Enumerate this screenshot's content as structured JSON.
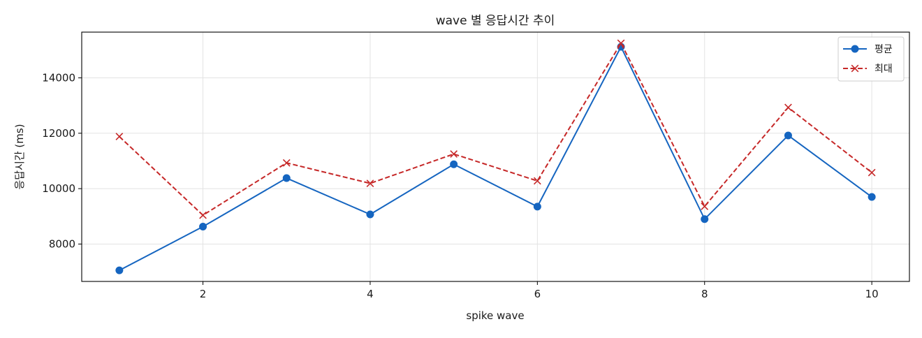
{
  "chart_data": {
    "type": "line",
    "title": "wave 별 응답시간 추이",
    "xlabel": "spike wave",
    "ylabel": "응답시간 (ms)",
    "x": [
      1,
      2,
      3,
      4,
      5,
      6,
      7,
      8,
      9,
      10
    ],
    "xlim": [
      0.55,
      10.45
    ],
    "ylim": [
      6650,
      15650
    ],
    "x_ticks": [
      2,
      4,
      6,
      8,
      10
    ],
    "y_ticks": [
      8000,
      10000,
      12000,
      14000
    ],
    "grid": true,
    "legend_position": "top-right",
    "series": [
      {
        "name": "평균",
        "color": "#1565c0",
        "marker": "circle",
        "line_style": "solid",
        "values": [
          7050,
          8630,
          10380,
          9070,
          10880,
          9350,
          15120,
          8900,
          11920,
          9700
        ]
      },
      {
        "name": "최대",
        "color": "#c62828",
        "marker": "x",
        "line_style": "dashed",
        "values": [
          11880,
          9040,
          10930,
          10190,
          11250,
          10280,
          15250,
          9360,
          12930,
          10580
        ]
      }
    ]
  }
}
